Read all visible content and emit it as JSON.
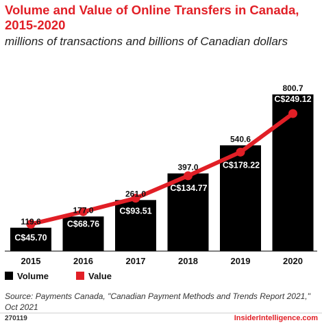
{
  "chart_data": {
    "type": "bar",
    "title": "Volume and Value of Online Transfers in Canada, 2015-2020",
    "subtitle": "millions of transactions and billions of Canadian dollars",
    "categories": [
      "2015",
      "2016",
      "2017",
      "2018",
      "2019",
      "2020"
    ],
    "series": [
      {
        "name": "Volume",
        "type": "bar",
        "values": [
          119.6,
          177.0,
          261.0,
          397.0,
          540.6,
          800.7
        ],
        "labels": [
          "119.6",
          "177.0",
          "261.0",
          "397.0",
          "540.6",
          "800.7"
        ],
        "color": "#000000"
      },
      {
        "name": "Value",
        "type": "line",
        "values": [
          45.7,
          68.76,
          93.51,
          134.77,
          178.22,
          249.12
        ],
        "labels": [
          "C$45.70",
          "C$68.76",
          "C$93.51",
          "C$134.77",
          "C$178.22",
          "C$249.12"
        ],
        "color": "#e11f26"
      }
    ],
    "legend_position": "bottom-left",
    "grid": false
  },
  "source": "Source: Payments Canada, \"Canadian Payment Methods and Trends Report 2021,\" Oct 2021",
  "footer": {
    "chart_id": "270119",
    "brand": "InsiderIntelligence.com"
  },
  "colors": {
    "title": "#e11f26",
    "bar": "#000000",
    "line": "#e11f26"
  }
}
